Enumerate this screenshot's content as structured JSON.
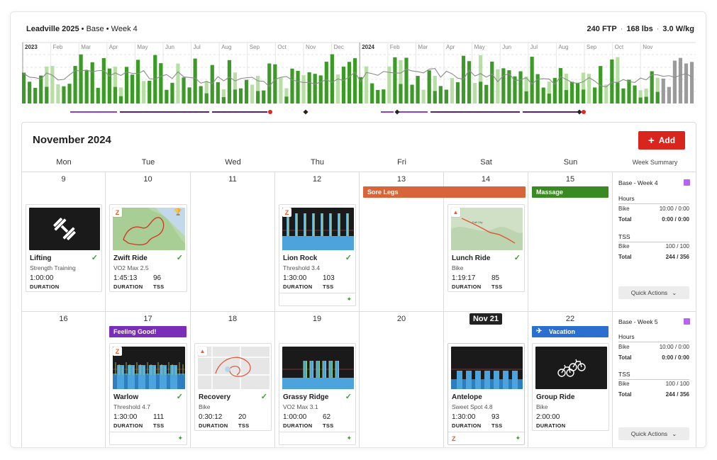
{
  "header": {
    "plan": "Leadville 2025",
    "phase": "Base",
    "week": "Week 4",
    "ftp": "240 FTP",
    "weight": "168 lbs",
    "wkg": "3.0 W/kg"
  },
  "timeline": {
    "year_labels": [
      "2023",
      "2024"
    ],
    "month_labels_2023": [
      "Feb",
      "Mar",
      "Apr",
      "May",
      "Jun",
      "Jul",
      "Aug",
      "Sep",
      "Oct",
      "Nov",
      "Dec"
    ],
    "month_labels_2024": [
      "Feb",
      "Mar",
      "Apr",
      "May",
      "Jun",
      "Jul",
      "Aug",
      "Sep",
      "Oct",
      "Nov"
    ],
    "colors": {
      "dark_green": "#3c9a26",
      "light_green": "#b7dfa4",
      "gray": "#9b9b9b",
      "purple": "#8a3fc9",
      "dark_purple": "#5a1f80",
      "red": "#e0261f"
    }
  },
  "calendar": {
    "month_title": "November 2024",
    "add_label": "Add",
    "day_headers": [
      "Mon",
      "Tue",
      "Wed",
      "Thu",
      "Fri",
      "Sat",
      "Sun"
    ],
    "week_summary_header": "Week Summary",
    "week1": {
      "days": [
        "9",
        "10",
        "11",
        "12",
        "13",
        "14",
        "15"
      ],
      "banners": {
        "fri": "Sore Legs",
        "sun": "Massage"
      },
      "workouts": {
        "mon": {
          "title": "Lifting",
          "sub": "Strength Training",
          "duration": "1:00:00",
          "duration_label": "DURATION"
        },
        "tue": {
          "title": "Zwift Ride",
          "sub": "VO2 Max 2.5",
          "duration": "1:45:13",
          "tss": "96",
          "duration_label": "DURATION",
          "tss_label": "TSS"
        },
        "thu": {
          "title": "Lion Rock",
          "sub": "Threshold 3.4",
          "duration": "1:30:00",
          "tss": "103",
          "duration_label": "DURATION",
          "tss_label": "TSS"
        },
        "sat": {
          "title": "Lunch Ride",
          "sub": "Bike",
          "duration": "1:19:17",
          "tss": "85",
          "duration_label": "DURATION",
          "tss_label": "TSS"
        }
      },
      "summary": {
        "title": "Base - Week 4",
        "hours_label": "Hours",
        "bike_label": "Bike",
        "hours_bike": "10:00",
        "hours_bike_target": "0:00",
        "total_label": "Total",
        "hours_total": "0:00",
        "hours_total_target": "0:00",
        "tss_label": "TSS",
        "tss_bike": "100",
        "tss_bike_target": "100",
        "tss_total": "244",
        "tss_total_target": "356",
        "quick_actions": "Quick Actions"
      }
    },
    "week2": {
      "days": [
        "16",
        "17",
        "18",
        "19",
        "20",
        "Nov 21",
        "22"
      ],
      "banners": {
        "tue": "Feeling Good!",
        "sun": "Vacation"
      },
      "workouts": {
        "tue": {
          "title": "Warlow",
          "sub": "Threshold 4.7",
          "duration": "1:30:00",
          "tss": "111",
          "duration_label": "DURATION",
          "tss_label": "TSS"
        },
        "wed": {
          "title": "Recovery",
          "sub": "Bike",
          "duration": "0:30:12",
          "tss": "20",
          "duration_label": "DURATION",
          "tss_label": "TSS"
        },
        "thu": {
          "title": "Grassy Ridge",
          "sub": "VO2 Max 3.1",
          "duration": "1:00:00",
          "tss": "62",
          "duration_label": "DURATION",
          "tss_label": "TSS"
        },
        "sat": {
          "title": "Antelope",
          "sub": "Sweet Spot 4.8",
          "duration": "1:30:00",
          "tss": "93",
          "duration_label": "DURATION",
          "tss_label": "TSS"
        },
        "sun": {
          "title": "Group Ride",
          "sub": "Bike",
          "duration": "2:00:00",
          "duration_label": "DURATION"
        }
      },
      "summary": {
        "title": "Base - Week 5",
        "hours_label": "Hours",
        "bike_label": "Bike",
        "hours_bike": "10:00",
        "hours_bike_target": "0:00",
        "total_label": "Total",
        "hours_total": "0:00",
        "hours_total_target": "0:00",
        "tss_label": "TSS",
        "tss_bike": "100",
        "tss_bike_target": "100",
        "tss_total": "244",
        "tss_total_target": "356",
        "quick_actions": "Quick Actions"
      }
    }
  },
  "icons": [
    "zwift-icon",
    "strava-icon",
    "check-icon",
    "sparkle-icon",
    "plane-icon",
    "dumbbell-icon",
    "bikes-icon",
    "plus-icon",
    "chevron-down-icon"
  ]
}
